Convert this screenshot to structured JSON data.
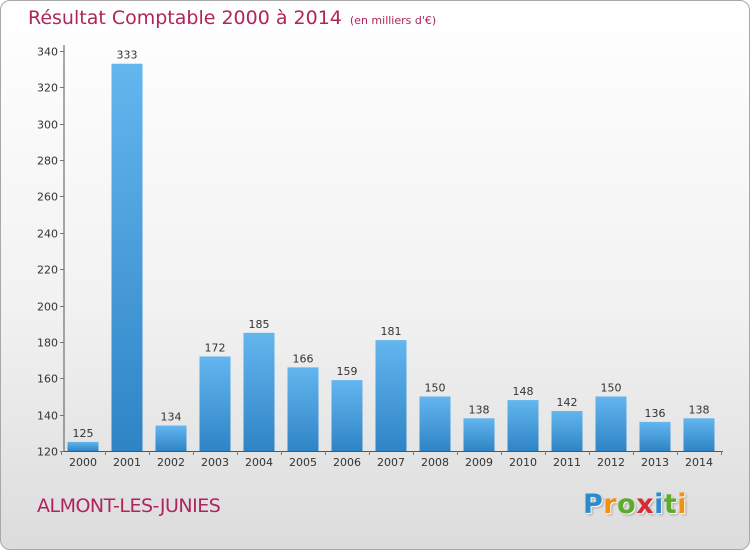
{
  "header": {
    "title": "Résultat Comptable 2000 à 2014",
    "unit": "(en milliers d'€)"
  },
  "footer": {
    "commune": "ALMONT-LES-JUNIES",
    "brand_letters": [
      "P",
      "r",
      "o",
      "x",
      "i",
      "t",
      "i"
    ],
    "brand_colors": [
      "#2e8bc9",
      "#f29111",
      "#5dab2a",
      "#d82b31",
      "#2e8bc9",
      "#5dab2a",
      "#f29111"
    ]
  },
  "colors": {
    "title": "#b0245c",
    "bar_top": "#63b6ee",
    "bar_bottom": "#2f84c6",
    "axis": "#555555",
    "grid_tick": "#777777"
  },
  "chart_data": {
    "type": "bar",
    "title": "Résultat Comptable 2000 à 2014",
    "subtitle": "(en milliers d'€)",
    "xlabel": "",
    "ylabel": "",
    "categories": [
      "2000",
      "2001",
      "2002",
      "2003",
      "2004",
      "2005",
      "2006",
      "2007",
      "2008",
      "2009",
      "2010",
      "2011",
      "2012",
      "2013",
      "2014"
    ],
    "values": [
      125,
      333,
      134,
      172,
      185,
      166,
      159,
      181,
      150,
      138,
      148,
      142,
      150,
      136,
      138
    ],
    "ylim": [
      120,
      340
    ],
    "yticks": [
      120,
      140,
      160,
      180,
      200,
      220,
      240,
      260,
      280,
      300,
      320,
      340
    ],
    "grid": false,
    "legend": "none"
  }
}
